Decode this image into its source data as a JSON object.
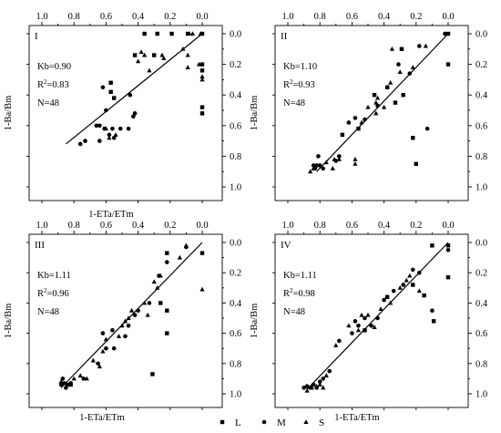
{
  "legend": {
    "items": [
      {
        "marker": "square",
        "label": "L"
      },
      {
        "marker": "circle",
        "label": "M"
      },
      {
        "marker": "triangle",
        "label": "S"
      }
    ],
    "placement": "bottom-center"
  },
  "chart_data": [
    {
      "type": "scatter",
      "panel_label": "I",
      "xlabel": "1-ETa/ETm",
      "ylabel": "1-Ba/Bm",
      "xlim": [
        1.0,
        0.0
      ],
      "ylim": [
        1.0,
        0.0
      ],
      "x_ticks": [
        "1.0",
        "0.8",
        "0.6",
        "0.4",
        "0.2",
        "0.0"
      ],
      "y_ticks": [
        "0.0",
        "0.2",
        "0.4",
        "0.6",
        "0.8",
        "1.0"
      ],
      "stats": [
        "Kb=0.90",
        "R²=0.83",
        "N=48"
      ],
      "fit_line": [
        [
          0.85,
          0.72
        ],
        [
          0.0,
          0.0
        ]
      ],
      "series": [
        {
          "name": "L",
          "marker": "square",
          "points": [
            [
              0.36,
              0.0
            ],
            [
              0.28,
              0.0
            ],
            [
              0.19,
              0.0
            ],
            [
              0.09,
              0.0
            ],
            [
              0.0,
              0.0
            ],
            [
              0.3,
              0.14
            ],
            [
              0.57,
              0.32
            ],
            [
              0.57,
              0.38
            ],
            [
              0.55,
              0.42
            ],
            [
              0.0,
              0.48
            ],
            [
              0.0,
              0.52
            ],
            [
              0.42,
              0.14
            ],
            [
              0.0,
              0.2
            ],
            [
              0.0,
              0.24
            ]
          ]
        },
        {
          "name": "M",
          "marker": "circle",
          "points": [
            [
              0.62,
              0.35
            ],
            [
              0.6,
              0.5
            ],
            [
              0.66,
              0.6
            ],
            [
              0.64,
              0.6
            ],
            [
              0.61,
              0.62
            ],
            [
              0.56,
              0.62
            ],
            [
              0.51,
              0.62
            ],
            [
              0.46,
              0.62
            ],
            [
              0.42,
              0.52
            ],
            [
              0.43,
              0.54
            ],
            [
              0.45,
              0.4
            ],
            [
              0.76,
              0.72
            ],
            [
              0.73,
              0.7
            ],
            [
              0.64,
              0.7
            ],
            [
              0.58,
              0.66
            ],
            [
              0.55,
              0.68
            ]
          ]
        },
        {
          "name": "S",
          "marker": "triangle",
          "points": [
            [
              0.36,
              0.14
            ],
            [
              0.33,
              0.24
            ],
            [
              0.4,
              0.18
            ],
            [
              0.25,
              0.14
            ],
            [
              0.09,
              0.14
            ],
            [
              0.08,
              0.0
            ],
            [
              0.06,
              0.0
            ],
            [
              0.01,
              0.0
            ],
            [
              0.0,
              0.28
            ],
            [
              0.0,
              0.3
            ],
            [
              0.54,
              0.66
            ],
            [
              0.58,
              0.68
            ],
            [
              0.38,
              0.12
            ],
            [
              0.24,
              0.16
            ],
            [
              0.02,
              0.2
            ],
            [
              0.09,
              0.22
            ],
            [
              0.12,
              0.1
            ],
            [
              0.6,
              0.62
            ]
          ]
        }
      ]
    },
    {
      "type": "scatter",
      "panel_label": "II",
      "xlabel": "",
      "ylabel": "1-Ba/Bm",
      "xlim": [
        1.0,
        0.0
      ],
      "ylim": [
        1.0,
        0.0
      ],
      "x_ticks": [
        "1.0",
        "0.8",
        "0.6",
        "0.4",
        "0.2",
        "0.0"
      ],
      "y_ticks": [
        "0.0",
        "0.2",
        "0.4",
        "0.6",
        "0.8",
        "1.0"
      ],
      "stats": [
        "Kb=1.10",
        "R²=0.93",
        "N=48"
      ],
      "fit_line": [
        [
          0.82,
          0.9
        ],
        [
          0.0,
          0.0
        ]
      ],
      "series": [
        {
          "name": "L",
          "marker": "square",
          "points": [
            [
              0.0,
              0.0
            ],
            [
              0.0,
              0.2
            ],
            [
              0.29,
              0.1
            ],
            [
              0.28,
              0.4
            ],
            [
              0.38,
              0.35
            ],
            [
              0.22,
              0.68
            ],
            [
              0.2,
              0.85
            ],
            [
              0.66,
              0.66
            ],
            [
              0.56,
              0.62
            ],
            [
              0.33,
              0.45
            ],
            [
              0.46,
              0.4
            ]
          ]
        },
        {
          "name": "M",
          "marker": "circle",
          "points": [
            [
              0.83,
              0.88
            ],
            [
              0.82,
              0.86
            ],
            [
              0.84,
              0.86
            ],
            [
              0.8,
              0.86
            ],
            [
              0.81,
              0.8
            ],
            [
              0.7,
              0.83
            ],
            [
              0.68,
              0.8
            ],
            [
              0.62,
              0.58
            ],
            [
              0.58,
              0.55
            ],
            [
              0.52,
              0.56
            ],
            [
              0.44,
              0.47
            ],
            [
              0.38,
              0.35
            ],
            [
              0.31,
              0.2
            ],
            [
              0.24,
              0.26
            ],
            [
              0.13,
              0.62
            ],
            [
              0.18,
              0.08
            ],
            [
              0.02,
              0.0
            ],
            [
              0.78,
              0.88
            ]
          ]
        },
        {
          "name": "S",
          "marker": "triangle",
          "points": [
            [
              0.84,
              0.88
            ],
            [
              0.72,
              0.88
            ],
            [
              0.58,
              0.82
            ],
            [
              0.5,
              0.48
            ],
            [
              0.45,
              0.45
            ],
            [
              0.45,
              0.52
            ],
            [
              0.4,
              0.48
            ],
            [
              0.14,
              0.08
            ],
            [
              0.22,
              0.22
            ],
            [
              0.3,
              0.25
            ],
            [
              0.35,
              0.1
            ],
            [
              0.71,
              0.82
            ],
            [
              0.58,
              0.85
            ],
            [
              0.54,
              0.58
            ],
            [
              0.36,
              0.32
            ],
            [
              0.44,
              0.42
            ],
            [
              0.68,
              0.82
            ],
            [
              0.76,
              0.84
            ],
            [
              0.86,
              0.9
            ]
          ]
        }
      ]
    },
    {
      "type": "scatter",
      "panel_label": "III",
      "xlabel": "1-ETa/ETm",
      "ylabel": "1-Ba/Bm",
      "xlim": [
        1.0,
        0.0
      ],
      "ylim": [
        1.0,
        0.0
      ],
      "x_ticks": [
        "1.0",
        "0.8",
        "0.6",
        "0.4",
        "0.2",
        "0.0"
      ],
      "y_ticks": [
        "0.0",
        "0.2",
        "0.4",
        "0.6",
        "0.8",
        "1.0"
      ],
      "stats": [
        "Kb=1.11",
        "R²=0.96",
        "N=48"
      ],
      "fit_line": [
        [
          0.88,
          0.96
        ],
        [
          0.0,
          0.0
        ]
      ],
      "series": [
        {
          "name": "L",
          "marker": "square",
          "points": [
            [
              0.22,
              0.07
            ],
            [
              0.26,
              0.4
            ],
            [
              0.22,
              0.45
            ],
            [
              0.22,
              0.6
            ],
            [
              0.0,
              0.07
            ],
            [
              0.31,
              0.87
            ],
            [
              0.82,
              0.94
            ]
          ]
        },
        {
          "name": "M",
          "marker": "circle",
          "points": [
            [
              0.88,
              0.94
            ],
            [
              0.86,
              0.93
            ],
            [
              0.84,
              0.94
            ],
            [
              0.82,
              0.93
            ],
            [
              0.74,
              0.9
            ],
            [
              0.65,
              0.8
            ],
            [
              0.55,
              0.7
            ],
            [
              0.48,
              0.62
            ],
            [
              0.42,
              0.48
            ],
            [
              0.4,
              0.45
            ],
            [
              0.33,
              0.4
            ],
            [
              0.27,
              0.22
            ],
            [
              0.22,
              0.13
            ],
            [
              0.1,
              0.03
            ],
            [
              0.62,
              0.6
            ],
            [
              0.56,
              0.58
            ],
            [
              0.46,
              0.55
            ],
            [
              0.87,
              0.9
            ],
            [
              0.85,
              0.96
            ],
            [
              0.6,
              0.7
            ]
          ]
        },
        {
          "name": "S",
          "marker": "triangle",
          "points": [
            [
              0.88,
              0.92
            ],
            [
              0.8,
              0.9
            ],
            [
              0.76,
              0.88
            ],
            [
              0.68,
              0.78
            ],
            [
              0.62,
              0.72
            ],
            [
              0.6,
              0.64
            ],
            [
              0.52,
              0.62
            ],
            [
              0.48,
              0.52
            ],
            [
              0.44,
              0.45
            ],
            [
              0.36,
              0.4
            ],
            [
              0.3,
              0.26
            ],
            [
              0.26,
              0.22
            ],
            [
              0.14,
              0.1
            ],
            [
              0.1,
              0.02
            ],
            [
              0.0,
              0.31
            ],
            [
              0.46,
              0.5
            ],
            [
              0.64,
              0.82
            ],
            [
              0.72,
              0.9
            ],
            [
              0.5,
              0.55
            ],
            [
              0.34,
              0.48
            ],
            [
              0.28,
              0.3
            ]
          ]
        }
      ]
    },
    {
      "type": "scatter",
      "panel_label": "IV",
      "xlabel": "1-ETa/ETm",
      "ylabel": "1-Ba/Bm",
      "xlim": [
        1.0,
        0.0
      ],
      "ylim": [
        1.0,
        0.0
      ],
      "x_ticks": [
        "1.0",
        "0.8",
        "0.6",
        "0.4",
        "0.2",
        "0.0"
      ],
      "y_ticks": [
        "0.0",
        "0.2",
        "0.4",
        "0.6",
        "0.8",
        "1.0"
      ],
      "stats": [
        "Kb=1.11",
        "R²=0.98",
        "N=48"
      ],
      "fit_line": [
        [
          0.88,
          0.97
        ],
        [
          0.0,
          0.0
        ]
      ],
      "series": [
        {
          "name": "L",
          "marker": "square",
          "points": [
            [
              0.0,
              0.02
            ],
            [
              0.0,
              0.23
            ],
            [
              0.1,
              0.02
            ],
            [
              0.09,
              0.52
            ],
            [
              0.15,
              0.35
            ],
            [
              0.22,
              0.28
            ],
            [
              0.38,
              0.36
            ],
            [
              0.52,
              0.58
            ]
          ]
        },
        {
          "name": "M",
          "marker": "circle",
          "points": [
            [
              0.9,
              0.96
            ],
            [
              0.88,
              0.95
            ],
            [
              0.86,
              0.96
            ],
            [
              0.84,
              0.94
            ],
            [
              0.8,
              0.92
            ],
            [
              0.78,
              0.9
            ],
            [
              0.74,
              0.85
            ],
            [
              0.68,
              0.65
            ],
            [
              0.6,
              0.6
            ],
            [
              0.56,
              0.55
            ],
            [
              0.52,
              0.5
            ],
            [
              0.48,
              0.55
            ],
            [
              0.44,
              0.5
            ],
            [
              0.4,
              0.38
            ],
            [
              0.34,
              0.32
            ],
            [
              0.28,
              0.28
            ],
            [
              0.22,
              0.18
            ],
            [
              0.18,
              0.2
            ],
            [
              0.1,
              0.45
            ],
            [
              0.0,
              0.05
            ],
            [
              0.58,
              0.52
            ],
            [
              0.82,
              0.96
            ]
          ]
        },
        {
          "name": "S",
          "marker": "triangle",
          "points": [
            [
              0.85,
              0.96
            ],
            [
              0.8,
              0.94
            ],
            [
              0.76,
              0.88
            ],
            [
              0.54,
              0.48
            ],
            [
              0.5,
              0.48
            ],
            [
              0.42,
              0.44
            ],
            [
              0.36,
              0.4
            ],
            [
              0.26,
              0.25
            ],
            [
              0.18,
              0.32
            ],
            [
              0.82,
              0.95
            ],
            [
              0.78,
              0.96
            ],
            [
              0.62,
              0.55
            ],
            [
              0.46,
              0.56
            ],
            [
              0.3,
              0.3
            ],
            [
              0.24,
              0.22
            ],
            [
              0.56,
              0.58
            ],
            [
              0.7,
              0.68
            ],
            [
              0.88,
              0.98
            ]
          ]
        }
      ]
    }
  ]
}
